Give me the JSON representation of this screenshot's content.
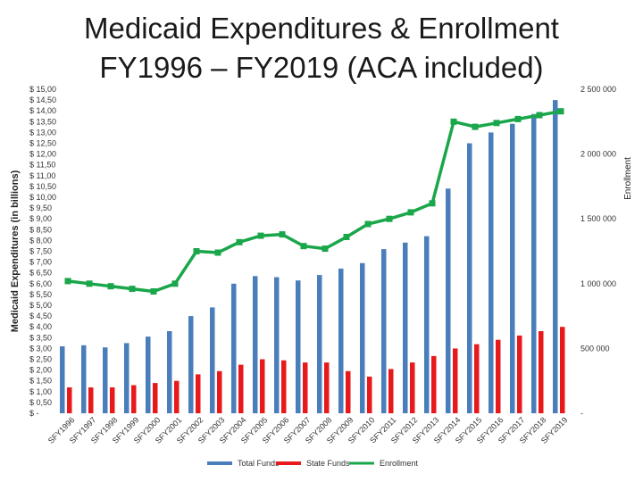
{
  "title_line1": "Medicaid Expenditures & Enrollment",
  "title_line2": "FY1996 – FY2019 (ACA included)",
  "chart_data": {
    "type": "bar",
    "categories": [
      "SFY1996",
      "SFY1997",
      "SFY1998",
      "SFY1999",
      "SFY2000",
      "SFY2001",
      "SFY2002",
      "SFY2003",
      "SFY2004",
      "SFY2005",
      "SFY2006",
      "SFY2007",
      "SFY2008",
      "SFY2009",
      "SFY2010",
      "SFY2011",
      "SFY2012",
      "SFY2013",
      "SFY2014",
      "SFY2015",
      "SFY2016",
      "SFY2017",
      "SFY2018",
      "SFY2019"
    ],
    "series": [
      {
        "name": "Total Funds",
        "type": "bar",
        "axis": "left",
        "color": "#4a7ebb",
        "values": [
          3.1,
          3.15,
          3.05,
          3.25,
          3.55,
          3.8,
          4.5,
          4.9,
          6.0,
          6.35,
          6.3,
          6.15,
          6.4,
          6.7,
          6.95,
          7.6,
          7.9,
          8.2,
          10.4,
          12.5,
          13.0,
          13.4,
          13.85,
          14.5
        ]
      },
      {
        "name": "State Funds",
        "type": "bar",
        "axis": "left",
        "color": "#e8191b",
        "values": [
          1.2,
          1.2,
          1.2,
          1.3,
          1.4,
          1.5,
          1.8,
          1.95,
          2.25,
          2.5,
          2.45,
          2.35,
          2.35,
          1.95,
          1.7,
          2.05,
          2.35,
          2.65,
          3.0,
          3.2,
          3.4,
          3.6,
          3.8,
          4.0
        ]
      },
      {
        "name": "Enrollment",
        "type": "line",
        "axis": "right",
        "color": "#1aa64a",
        "values": [
          1020000,
          1000000,
          980000,
          960000,
          940000,
          1000000,
          1250000,
          1240000,
          1320000,
          1370000,
          1380000,
          1290000,
          1270000,
          1360000,
          1460000,
          1500000,
          1550000,
          1620000,
          2250000,
          2210000,
          2240000,
          2270000,
          2300000,
          2330000
        ]
      }
    ],
    "ylabel": "Medicaid Expenditures (in billions)",
    "y2label": "Enrollment",
    "ylim": [
      0,
      15
    ],
    "y2lim": [
      0,
      2500000
    ],
    "yticks": [
      "$ -",
      "$ 0,50",
      "$ 1,00",
      "$ 1,50",
      "$ 2,00",
      "$ 2,50",
      "$ 3,00",
      "$ 3,50",
      "$ 4,00",
      "$ 4,50",
      "$ 5,00",
      "$ 5,50",
      "$ 6,00",
      "$ 6,50",
      "$ 7,00",
      "$ 7,50",
      "$ 8,00",
      "$ 8,50",
      "$ 9,00",
      "$ 9,50",
      "$ 10,00",
      "$ 10,50",
      "$ 11,00",
      "$ 11,50",
      "$ 12,00",
      "$ 12,50",
      "$ 13,00",
      "$ 13,50",
      "$ 14,00",
      "$ 14,50",
      "$ 15,00"
    ],
    "y2ticks": [
      "-",
      "500 000",
      "1 000 000",
      "1 500 000",
      "2 000 000",
      "2 500 000"
    ],
    "legend": [
      "Total Funds",
      "State Funds",
      "Enrollment"
    ],
    "legend_position": "bottom",
    "grid": false
  }
}
